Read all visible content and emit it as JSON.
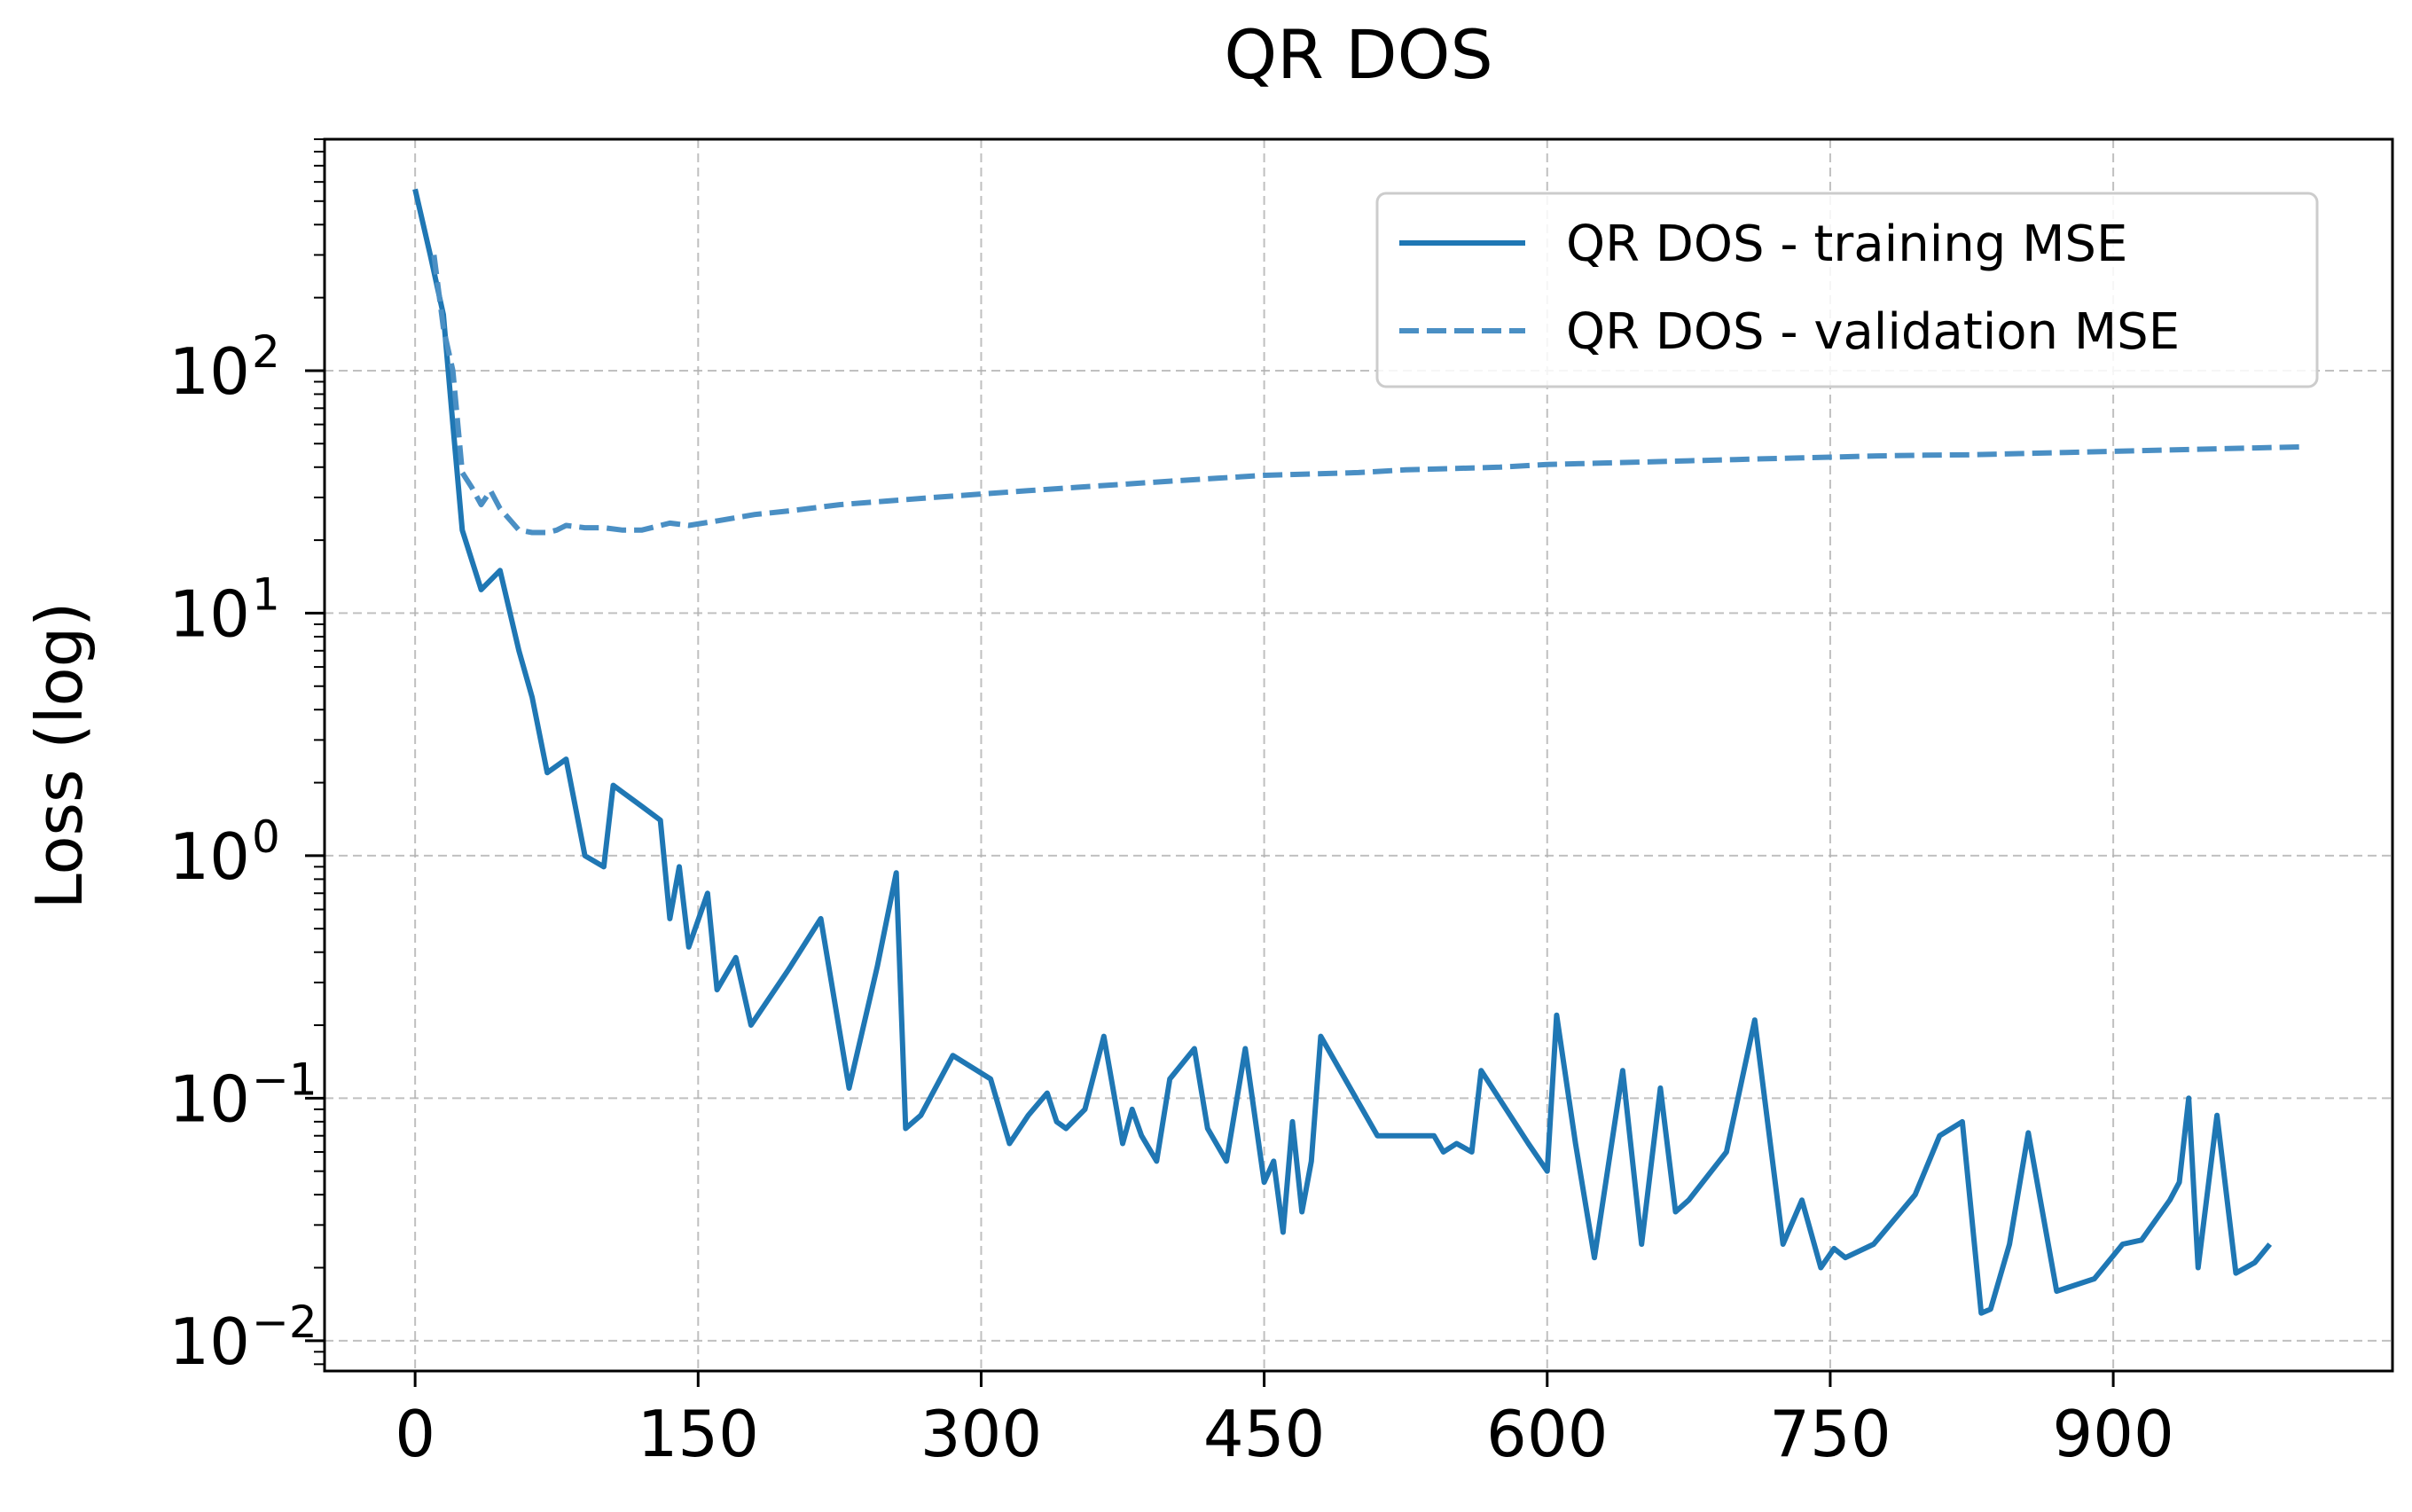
{
  "chart_data": {
    "type": "line",
    "title": "QR DOS",
    "xlabel": "",
    "ylabel": "Loss (log)",
    "yscale": "log",
    "xlim": [
      -48,
      1048
    ],
    "ylim": [
      0.0075,
      900
    ],
    "x_ticks": [
      0,
      150,
      300,
      450,
      600,
      750,
      900
    ],
    "x_tick_labels": [
      "0",
      "150",
      "300",
      "450",
      "600",
      "750",
      "900"
    ],
    "y_ticks": [
      0.01,
      0.1,
      1,
      10,
      100
    ],
    "y_tick_labels": [
      {
        "base": "10",
        "exp": "−2"
      },
      {
        "base": "10",
        "exp": "−1"
      },
      {
        "base": "10",
        "exp": "0"
      },
      {
        "base": "10",
        "exp": "1"
      },
      {
        "base": "10",
        "exp": "2"
      }
    ],
    "grid": true,
    "legend_position": "top-right",
    "series": [
      {
        "name": "QR DOS - training MSE",
        "style": "solid",
        "color": "#1f77b4",
        "x": [
          0,
          8,
          15,
          20,
          25,
          35,
          45,
          55,
          62,
          70,
          80,
          90,
          100,
          105,
          120,
          130,
          135,
          140,
          145,
          155,
          160,
          170,
          178,
          198,
          215,
          230,
          245,
          255,
          260,
          268,
          285,
          305,
          315,
          325,
          335,
          340,
          345,
          355,
          365,
          375,
          380,
          385,
          393,
          400,
          413,
          420,
          430,
          440,
          450,
          455,
          460,
          465,
          470,
          475,
          480,
          510,
          540,
          545,
          552,
          560,
          565,
          590,
          600,
          605,
          615,
          625,
          640,
          650,
          660,
          668,
          675,
          695,
          710,
          725,
          735,
          745,
          752,
          758,
          773,
          795,
          808,
          820,
          830,
          835,
          845,
          855,
          870,
          890,
          905,
          915,
          930,
          935,
          940,
          945,
          955,
          965,
          975,
          983
        ],
        "y": [
          560,
          300,
          170,
          60,
          22,
          12.5,
          15,
          7,
          4.5,
          2.2,
          2.5,
          1.0,
          0.9,
          1.95,
          1.6,
          1.4,
          0.55,
          0.9,
          0.42,
          0.7,
          0.28,
          0.38,
          0.2,
          0.34,
          0.55,
          0.11,
          0.35,
          0.85,
          0.075,
          0.085,
          0.15,
          0.12,
          0.065,
          0.085,
          0.105,
          0.08,
          0.075,
          0.09,
          0.18,
          0.065,
          0.09,
          0.07,
          0.055,
          0.12,
          0.16,
          0.075,
          0.055,
          0.16,
          0.045,
          0.055,
          0.028,
          0.08,
          0.034,
          0.055,
          0.18,
          0.07,
          0.07,
          0.06,
          0.065,
          0.06,
          0.13,
          0.065,
          0.05,
          0.22,
          0.065,
          0.022,
          0.13,
          0.025,
          0.11,
          0.034,
          0.038,
          0.06,
          0.21,
          0.025,
          0.038,
          0.02,
          0.024,
          0.022,
          0.025,
          0.04,
          0.07,
          0.08,
          0.013,
          0.0135,
          0.025,
          0.072,
          0.016,
          0.018,
          0.025,
          0.026,
          0.038,
          0.045,
          0.1,
          0.02,
          0.085,
          0.019,
          0.021,
          0.025
        ]
      },
      {
        "name": "QR DOS - validation MSE",
        "style": "dashed",
        "color": "#4a8fc4",
        "x": [
          10,
          15,
          20,
          25,
          30,
          35,
          40,
          45,
          55,
          62,
          70,
          75,
          80,
          90,
          100,
          110,
          120,
          135,
          145,
          160,
          180,
          200,
          225,
          250,
          275,
          300,
          325,
          350,
          375,
          400,
          425,
          450,
          475,
          500,
          525,
          550,
          575,
          600,
          625,
          650,
          675,
          700,
          725,
          750,
          775,
          800,
          825,
          850,
          875,
          900,
          925,
          950,
          975,
          1000
        ],
        "y": [
          300,
          150,
          100,
          38,
          33,
          28,
          32,
          27,
          22,
          21.5,
          21.5,
          22,
          23,
          22.5,
          22.5,
          22,
          22,
          23.5,
          23,
          24,
          25.5,
          26.5,
          28,
          29,
          30,
          31,
          32,
          33,
          34,
          35,
          36,
          37,
          37.5,
          38,
          39,
          39.5,
          40,
          41,
          41.5,
          42,
          42.5,
          43,
          43.5,
          44,
          44.5,
          44.8,
          45,
          45.5,
          46,
          46.5,
          47,
          47.5,
          48,
          48.5
        ]
      }
    ]
  }
}
